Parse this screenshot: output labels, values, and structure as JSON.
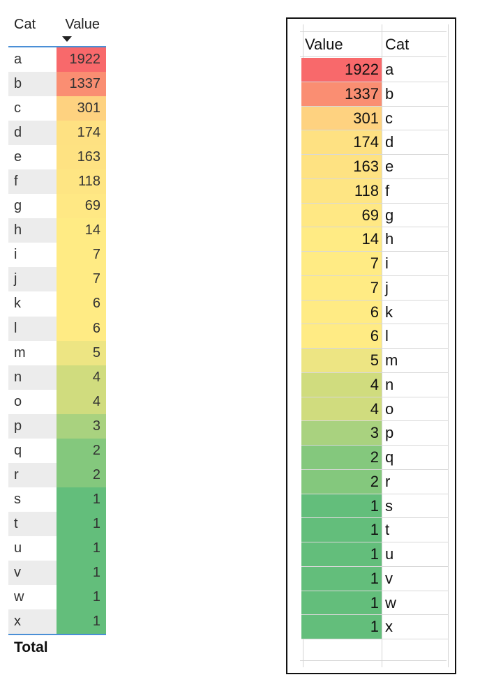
{
  "left_table": {
    "header": {
      "cat": "Cat",
      "value": "Value"
    },
    "total_label": "Total"
  },
  "right_table": {
    "header": {
      "value": "Value",
      "cat": "Cat"
    }
  },
  "chart_data": [
    {
      "type": "table",
      "style": "conditional-format color scale (red-yellow-green), sorted descending by Value",
      "columns": [
        "Cat",
        "Value"
      ],
      "rows": [
        [
          "a",
          1922
        ],
        [
          "b",
          1337
        ],
        [
          "c",
          301
        ],
        [
          "d",
          174
        ],
        [
          "e",
          163
        ],
        [
          "f",
          118
        ],
        [
          "g",
          69
        ],
        [
          "h",
          14
        ],
        [
          "i",
          7
        ],
        [
          "j",
          7
        ],
        [
          "k",
          6
        ],
        [
          "l",
          6
        ],
        [
          "m",
          5
        ],
        [
          "n",
          4
        ],
        [
          "o",
          4
        ],
        [
          "p",
          3
        ],
        [
          "q",
          2
        ],
        [
          "r",
          2
        ],
        [
          "s",
          1
        ],
        [
          "t",
          1
        ],
        [
          "u",
          1
        ],
        [
          "v",
          1
        ],
        [
          "w",
          1
        ],
        [
          "x",
          1
        ]
      ],
      "cell_colors": [
        "#f8696b",
        "#fa8e72",
        "#fed280",
        "#fee182",
        "#fee282",
        "#fee583",
        "#ffe884",
        "#ffeb84",
        "#ffeb84",
        "#ffeb84",
        "#ffeb84",
        "#ffeb84",
        "#ede583",
        "#d0dc7e",
        "#d0dc7e",
        "#a9d27f",
        "#84c87d",
        "#84c87d",
        "#63be7b",
        "#63be7b",
        "#63be7b",
        "#63be7b",
        "#63be7b",
        "#63be7b"
      ]
    },
    {
      "type": "table",
      "style": "excel conditional-format color scale, Value column first",
      "columns": [
        "Value",
        "Cat"
      ],
      "same_rows_as": 0
    }
  ]
}
